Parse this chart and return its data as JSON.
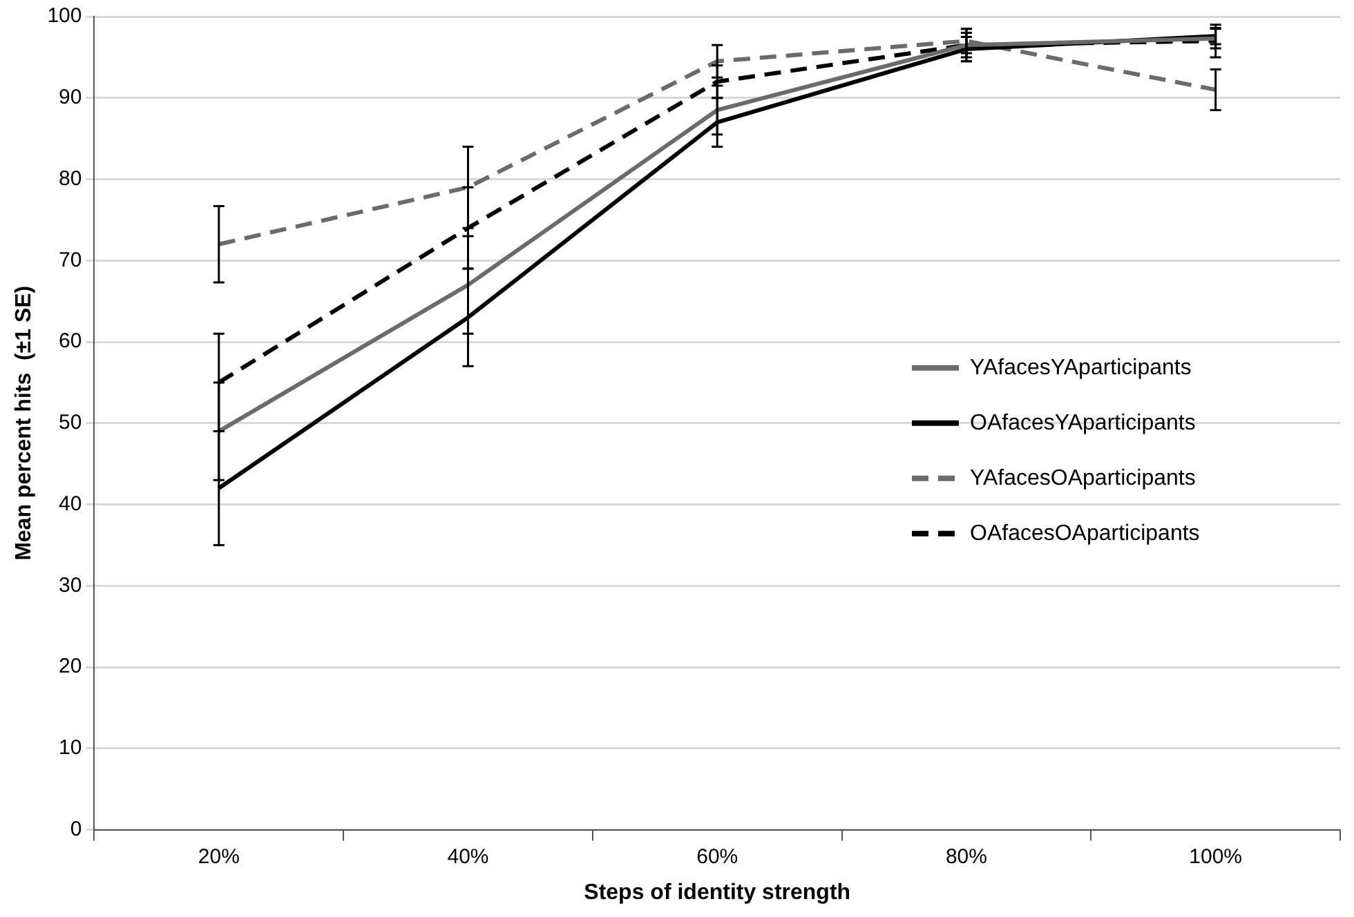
{
  "chart_data": {
    "type": "line",
    "xlabel": "Steps of identity strength",
    "ylabel": "Mean percent hits  (±1 SE)",
    "categories": [
      "20%",
      "40%",
      "60%",
      "80%",
      "100%"
    ],
    "series": [
      {
        "name": "YAfacesYAparticipants",
        "color": "#6b6b6b",
        "line_style": "solid",
        "values": [
          49,
          67,
          88.5,
          96.5,
          97.3
        ],
        "errors": [
          6,
          6,
          3,
          1.5,
          1.2
        ]
      },
      {
        "name": "OAfacesYAparticipants",
        "color": "#000000",
        "line_style": "solid",
        "values": [
          42,
          63,
          87,
          96,
          97.6
        ],
        "errors": [
          7,
          6,
          3,
          1.5,
          1
        ]
      },
      {
        "name": "YAfacesOAparticipants",
        "color": "#6b6b6b",
        "line_style": "dashed",
        "values": [
          72,
          79,
          94.5,
          97,
          91
        ],
        "errors": [
          4.7,
          5,
          2,
          1.5,
          2.5
        ]
      },
      {
        "name": "OAfacesOAparticipants",
        "color": "#000000",
        "line_style": "dashed",
        "values": [
          55,
          74,
          92,
          96.5,
          97
        ],
        "errors": [
          6,
          5,
          2,
          2,
          2
        ]
      }
    ],
    "ylim": [
      0,
      100
    ],
    "yticks": [
      0,
      10,
      20,
      30,
      40,
      50,
      60,
      70,
      80,
      90,
      100
    ],
    "grid": "y",
    "legend": "right",
    "marker": "none"
  }
}
